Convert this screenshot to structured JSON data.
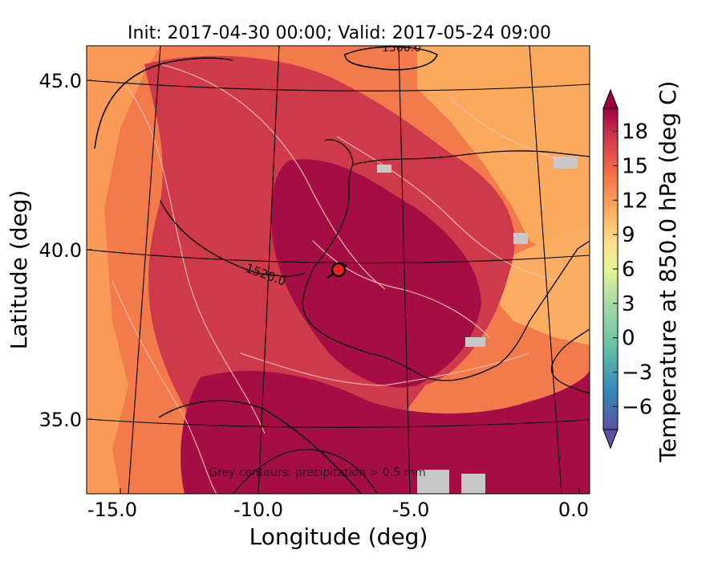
{
  "title": "Init: 2017-04-30 00:00; Valid: 2017-05-24 09:00",
  "xlabel": "Longitude (deg)",
  "ylabel": "Latitude (deg)",
  "x_ticks": [
    "-15.0",
    "-10.0",
    "-5.0",
    "0.0"
  ],
  "y_ticks": [
    "45.0",
    "40.0",
    "35.0"
  ],
  "colorbar": {
    "label": "Temperature at 850.0 hPa (deg C)",
    "ticks": [
      "18",
      "15",
      "12",
      "9",
      "6",
      "3",
      "0",
      "−3",
      "−6"
    ],
    "min": -8,
    "max": 20,
    "extend": "both",
    "colormap": "Spectral_r"
  },
  "contour_labels": [
    "1500.0",
    "1520.0"
  ],
  "footnote": "Grey contours: precipitation > 0.5 mm",
  "marker": {
    "lon": -7.6,
    "lat": 39.3,
    "color": "#e8231e",
    "edge": "#000000"
  },
  "colors": {
    "hot": "#a40e45",
    "warm": "#d0384a",
    "mid": "#e8563f",
    "orange": "#f57e4a",
    "light": "#fbaa5d",
    "precip": "#c8c8c8"
  }
}
